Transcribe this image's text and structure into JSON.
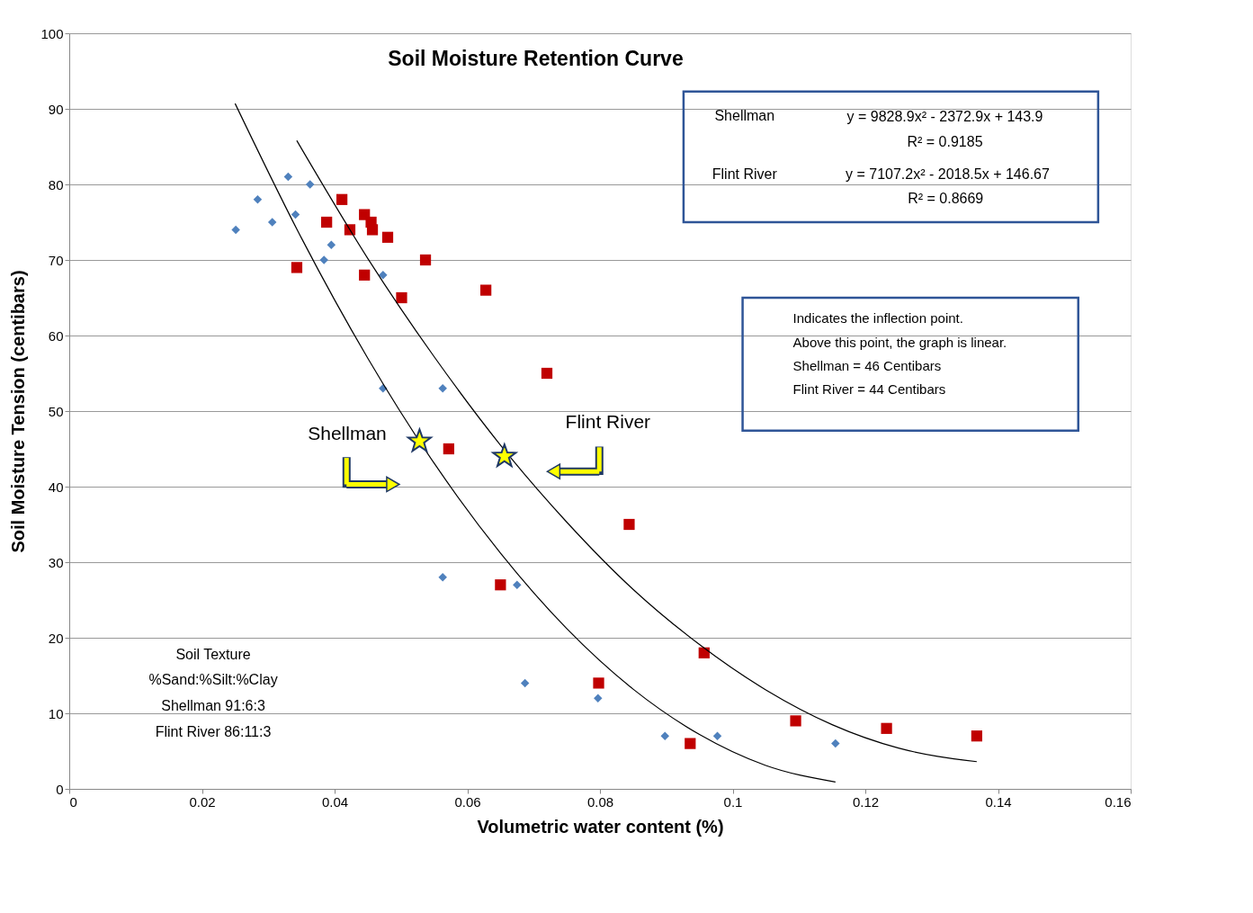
{
  "chart_data": {
    "type": "scatter",
    "title": "Soil Moisture Retention Curve",
    "xlabel": "Volumetric water content (%)",
    "ylabel": "Soil Moisture Tension (centibars)",
    "xlim": [
      0,
      0.16
    ],
    "xticks": [
      0,
      0.02,
      0.04,
      0.06,
      0.08,
      0.1,
      0.12,
      0.14,
      0.16
    ],
    "ylim": [
      0,
      100
    ],
    "yticks": [
      0,
      10,
      20,
      30,
      40,
      50,
      60,
      70,
      80,
      90,
      100
    ],
    "grid": "y",
    "series": [
      {
        "marker": "diamond",
        "color": "#4f81bd",
        "x": [
          0.0251,
          0.0284,
          0.0306,
          0.033,
          0.0341,
          0.0363,
          0.0384,
          0.0395,
          0.0473,
          0.0473,
          0.0563,
          0.0563,
          0.0675,
          0.0687,
          0.0797,
          0.0898,
          0.0977,
          0.1155
        ],
        "values": [
          74,
          78,
          75,
          81,
          76,
          80,
          70,
          72,
          68,
          53,
          53,
          28,
          27,
          14,
          12,
          7,
          7,
          6
        ]
      },
      {
        "marker": "square",
        "color": "#c00000",
        "x": [
          0.0343,
          0.0388,
          0.0411,
          0.0423,
          0.0445,
          0.0455,
          0.0457,
          0.0445,
          0.048,
          0.0501,
          0.0537,
          0.0572,
          0.0628,
          0.065,
          0.072,
          0.0798,
          0.0844,
          0.0957,
          0.0936,
          0.1095,
          0.1232,
          0.1368
        ],
        "values": [
          69,
          75,
          78,
          74,
          76,
          75,
          74,
          68,
          73,
          65,
          70,
          45,
          66,
          27,
          55,
          14,
          35,
          18,
          6,
          9,
          8,
          7
        ]
      },
      {
        "type": "line",
        "line_style": "solid",
        "marker": "none",
        "color": "#000000",
        "x": [
          0.025,
          0.035,
          0.045,
          0.055,
          0.065,
          0.075,
          0.085,
          0.095,
          0.105,
          0.1155
        ],
        "values": [
          90.7,
          72.9,
          57.0,
          43.1,
          31.2,
          21.2,
          13.2,
          7.2,
          3.1,
          0.9
        ]
      },
      {
        "type": "line",
        "line_style": "solid",
        "marker": "none",
        "color": "#000000",
        "x": [
          0.0343,
          0.045,
          0.055,
          0.065,
          0.075,
          0.085,
          0.095,
          0.105,
          0.115,
          0.125,
          0.1368
        ],
        "values": [
          85.8,
          70.2,
          57.2,
          45.5,
          35.3,
          26.4,
          19.1,
          13.1,
          8.5,
          5.4,
          3.6
        ]
      },
      {
        "marker": "star",
        "color": "#ffff00",
        "x": [
          0.0528,
          0.0656
        ],
        "values": [
          46,
          44
        ]
      }
    ],
    "annotations": [
      "Shellman",
      "Flint River",
      "Shellman",
      "y = 9828.9x² - 2372.9x + 143.9",
      "R² = 0.9185",
      "Flint River",
      "y = 7107.2x² - 2018.5x + 146.67",
      "R² = 0.8669",
      "Indicates the inflection point.",
      "Above this point, the graph is linear.",
      "Shellman  = 46 Centibars",
      "Flint River  = 44 Centibars",
      "Soil Texture",
      "%Sand:%Silt:%Clay",
      "Shellman 91:6:3",
      "Flint River 86:11:3"
    ]
  }
}
